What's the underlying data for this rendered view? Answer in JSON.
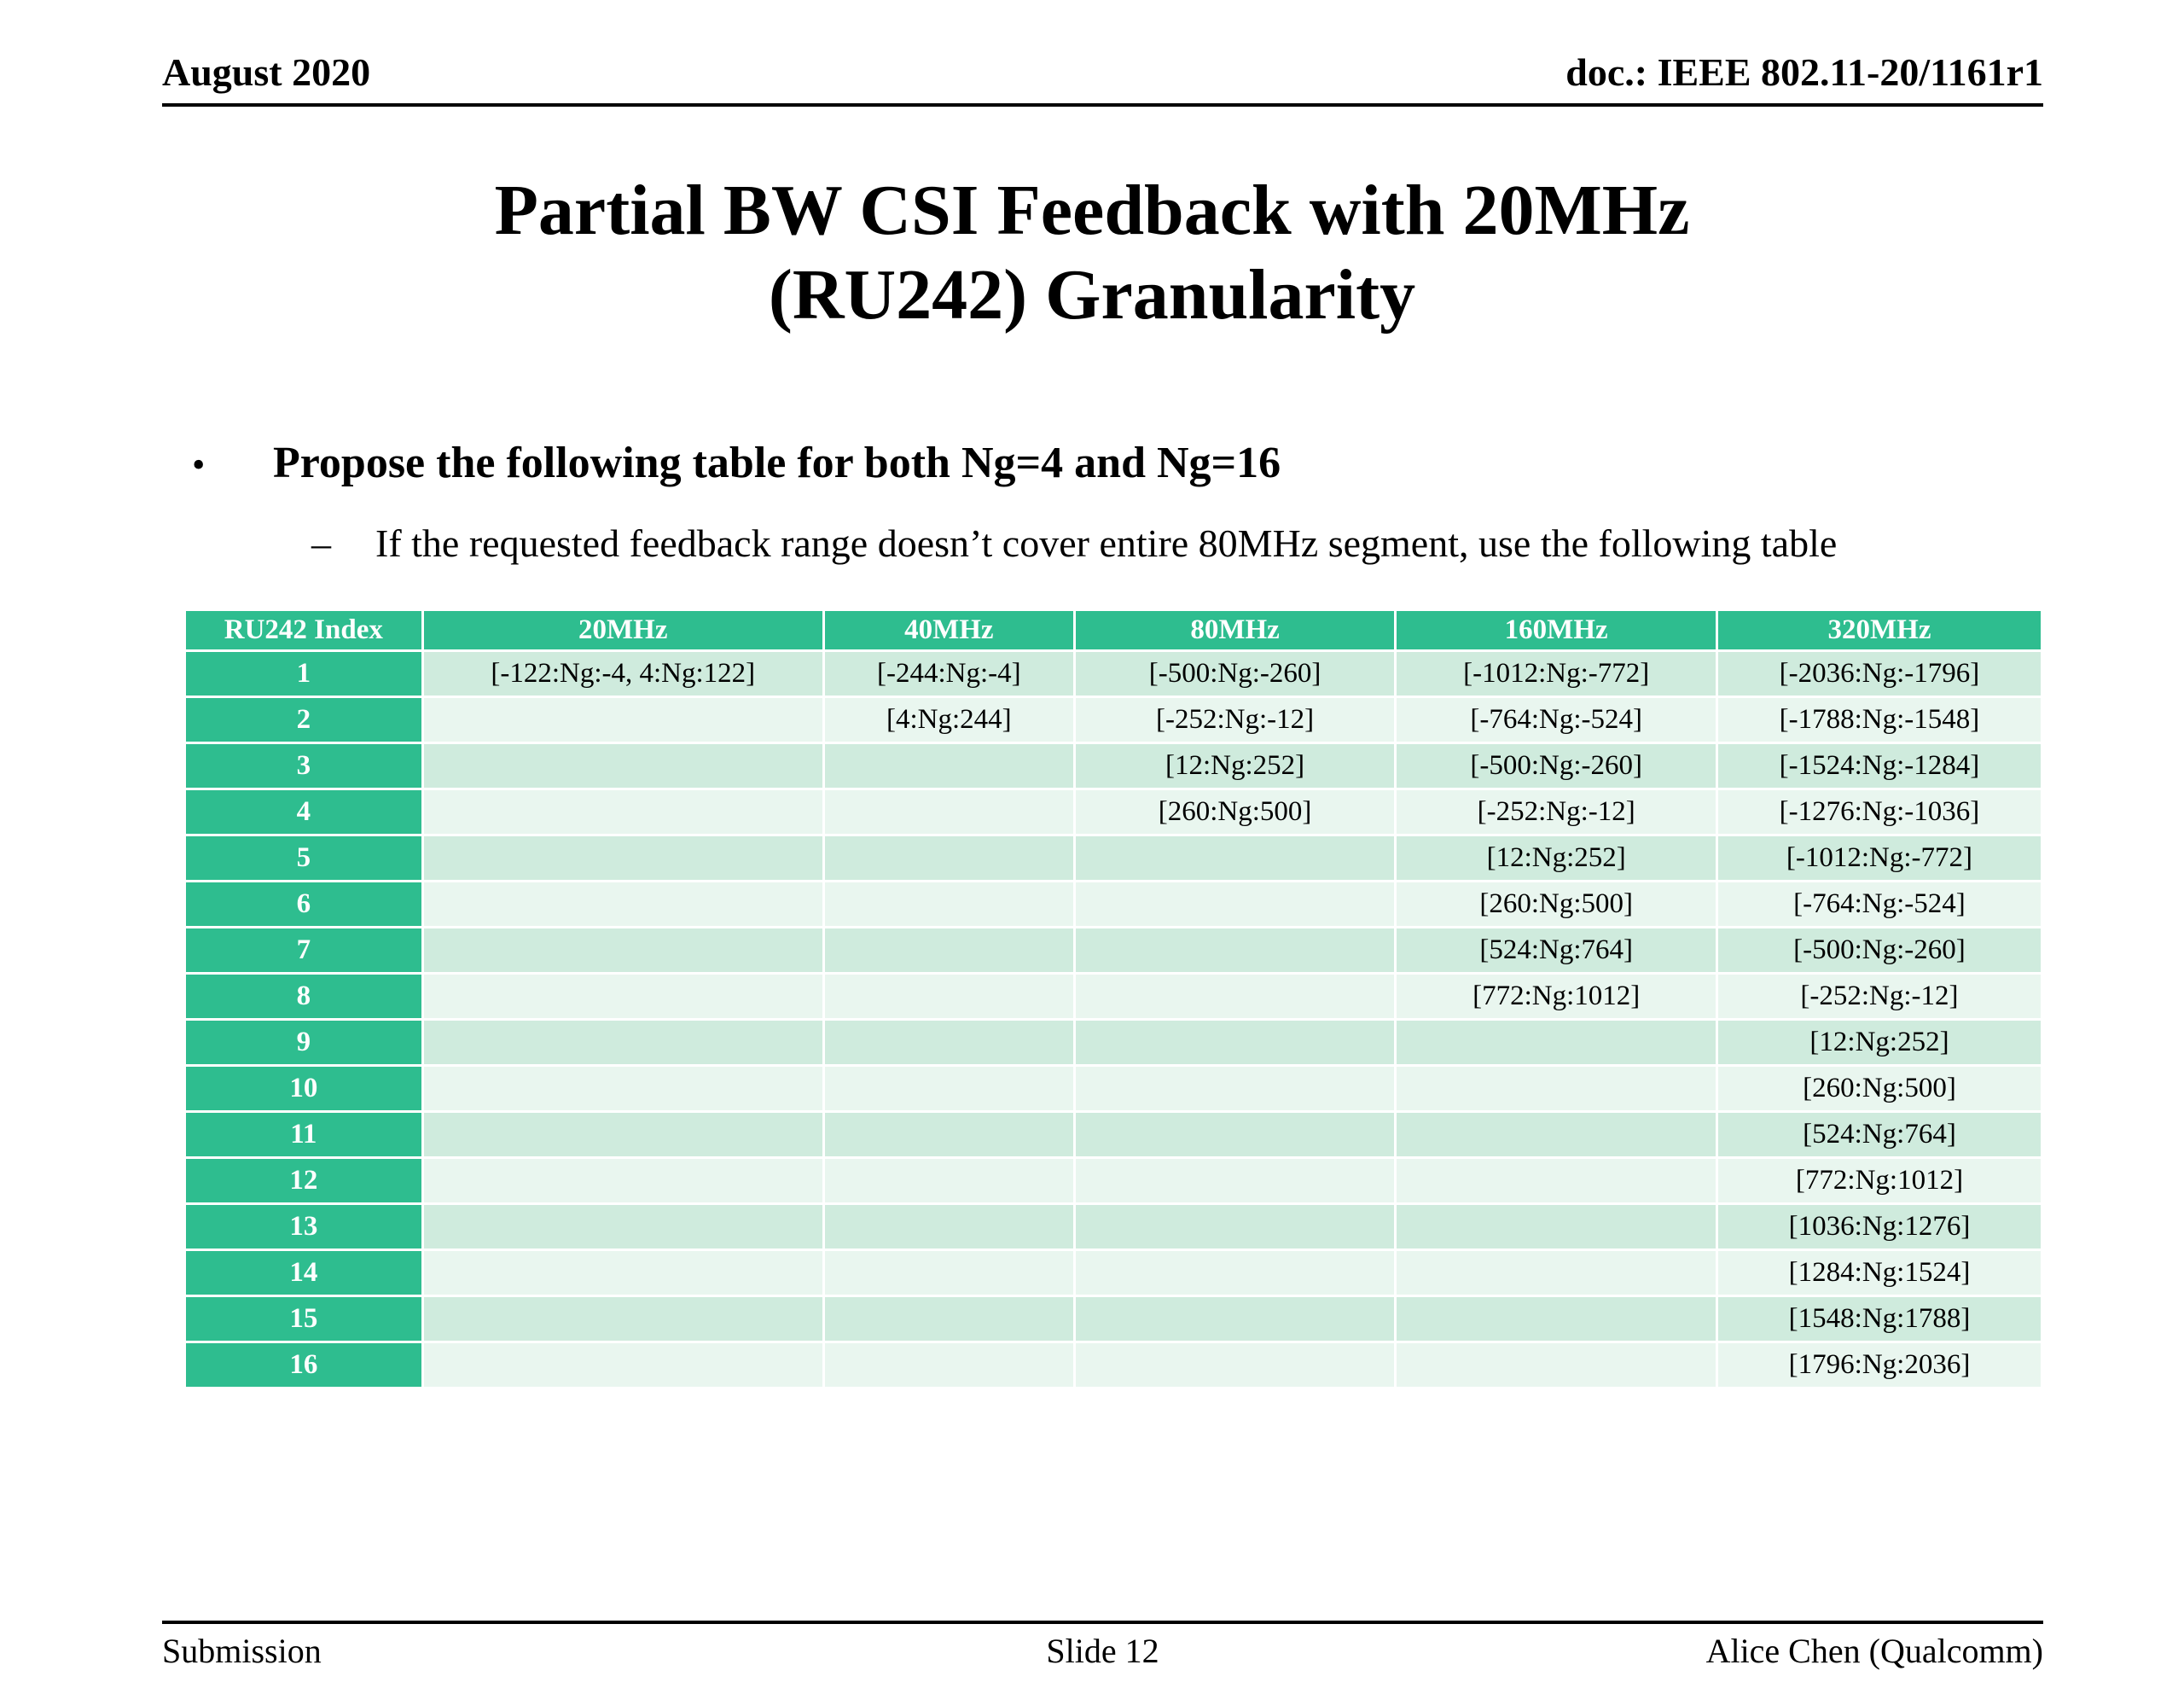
{
  "header": {
    "date": "August 2020",
    "doc": "doc.: IEEE 802.11-20/1161r1"
  },
  "title": {
    "line1": "Partial BW CSI Feedback with 20MHz",
    "line2": "(RU242) Granularity"
  },
  "bullets": {
    "marker": "•",
    "main": "Propose the following table for both Ng=4 and Ng=16",
    "sub_marker": "–",
    "sub": "If the requested feedback range doesn’t cover entire 80MHz segment, use the following table"
  },
  "table": {
    "headers": [
      "RU242 Index",
      "20MHz",
      "40MHz",
      "80MHz",
      "160MHz",
      "320MHz"
    ],
    "rows": [
      {
        "index": "1",
        "cells": [
          "[-122:Ng:-4, 4:Ng:122]",
          "[-244:Ng:-4]",
          "[-500:Ng:-260]",
          "[-1012:Ng:-772]",
          "[-2036:Ng:-1796]"
        ]
      },
      {
        "index": "2",
        "cells": [
          "",
          "[4:Ng:244]",
          "[-252:Ng:-12]",
          "[-764:Ng:-524]",
          "[-1788:Ng:-1548]"
        ]
      },
      {
        "index": "3",
        "cells": [
          "",
          "",
          "[12:Ng:252]",
          "[-500:Ng:-260]",
          "[-1524:Ng:-1284]"
        ]
      },
      {
        "index": "4",
        "cells": [
          "",
          "",
          "[260:Ng:500]",
          "[-252:Ng:-12]",
          "[-1276:Ng:-1036]"
        ]
      },
      {
        "index": "5",
        "cells": [
          "",
          "",
          "",
          "[12:Ng:252]",
          "[-1012:Ng:-772]"
        ]
      },
      {
        "index": "6",
        "cells": [
          "",
          "",
          "",
          "[260:Ng:500]",
          "[-764:Ng:-524]"
        ]
      },
      {
        "index": "7",
        "cells": [
          "",
          "",
          "",
          "[524:Ng:764]",
          "[-500:Ng:-260]"
        ]
      },
      {
        "index": "8",
        "cells": [
          "",
          "",
          "",
          "[772:Ng:1012]",
          "[-252:Ng:-12]"
        ]
      },
      {
        "index": "9",
        "cells": [
          "",
          "",
          "",
          "",
          "[12:Ng:252]"
        ]
      },
      {
        "index": "10",
        "cells": [
          "",
          "",
          "",
          "",
          "[260:Ng:500]"
        ]
      },
      {
        "index": "11",
        "cells": [
          "",
          "",
          "",
          "",
          "[524:Ng:764]"
        ]
      },
      {
        "index": "12",
        "cells": [
          "",
          "",
          "",
          "",
          "[772:Ng:1012]"
        ]
      },
      {
        "index": "13",
        "cells": [
          "",
          "",
          "",
          "",
          "[1036:Ng:1276]"
        ]
      },
      {
        "index": "14",
        "cells": [
          "",
          "",
          "",
          "",
          "[1284:Ng:1524]"
        ]
      },
      {
        "index": "15",
        "cells": [
          "",
          "",
          "",
          "",
          "[1548:Ng:1788]"
        ]
      },
      {
        "index": "16",
        "cells": [
          "",
          "",
          "",
          "",
          "[1796:Ng:2036]"
        ]
      }
    ]
  },
  "footer": {
    "left": "Submission",
    "center": "Slide 12",
    "right": "Alice Chen (Qualcomm)"
  },
  "colors": {
    "table_header_bg": "#2ebd8f",
    "row_odd_bg": "#cfebdd",
    "row_even_bg": "#e9f6ef"
  }
}
